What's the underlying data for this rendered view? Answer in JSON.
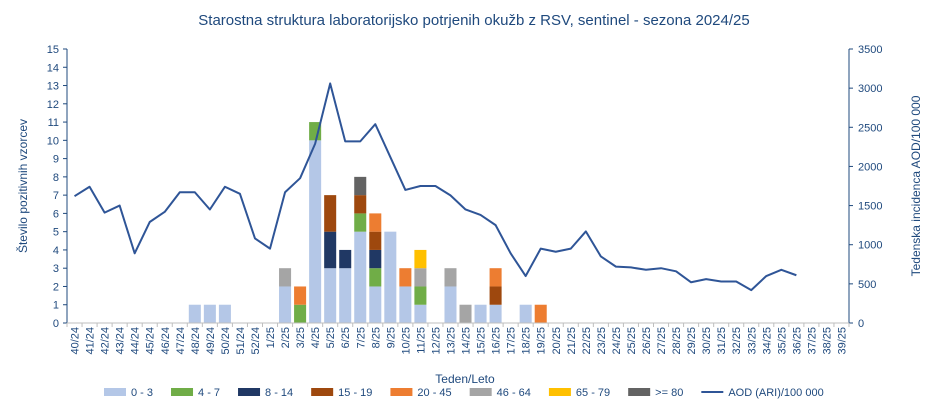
{
  "chart_data": {
    "type": "bar",
    "title": "Starostna struktura  laboratorijsko potrjenih okužb z RSV, sentinel - sezona 2024/25",
    "xlabel": "Teden/Leto",
    "ylabel": "Število pozitivnih vzorcev",
    "y2label": "Tedenska incidenca AOD/100 000",
    "ylim": [
      0,
      15
    ],
    "y2lim": [
      0,
      3500
    ],
    "yticks": [
      0,
      1,
      2,
      3,
      4,
      5,
      6,
      7,
      8,
      9,
      10,
      11,
      12,
      13,
      14,
      15
    ],
    "y2ticks": [
      0,
      500,
      1000,
      1500,
      2000,
      2500,
      3000,
      3500
    ],
    "grid": false,
    "legend_position": "bottom",
    "categories": [
      "40/24",
      "41/24",
      "42/24",
      "43/24",
      "44/24",
      "45/24",
      "46/24",
      "47/24",
      "48/24",
      "49/24",
      "50/24",
      "51/24",
      "52/24",
      "1/25",
      "2/25",
      "3/25",
      "4/25",
      "5/25",
      "6/25",
      "7/25",
      "8/25",
      "9/25",
      "10/25",
      "11/25",
      "12/25",
      "13/25",
      "14/25",
      "15/25",
      "16/25",
      "17/25",
      "18/25",
      "19/25",
      "20/25",
      "21/25",
      "22/25",
      "23/25",
      "24/25",
      "25/25",
      "26/25",
      "27/25",
      "28/25",
      "29/25",
      "30/25",
      "31/25",
      "32/25",
      "33/25",
      "34/25",
      "35/25",
      "36/25",
      "37/25",
      "38/25",
      "39/25"
    ],
    "series": [
      {
        "name": "0 - 3",
        "color": "#b4c7e7",
        "values": [
          0,
          0,
          0,
          0,
          0,
          0,
          0,
          0,
          1,
          1,
          1,
          0,
          0,
          0,
          2,
          0,
          10,
          3,
          3,
          5,
          2,
          5,
          2,
          1,
          0,
          2,
          0,
          1,
          1,
          0,
          1,
          0,
          0,
          0,
          0,
          0,
          0,
          0,
          0,
          0,
          0,
          0,
          0,
          0,
          0,
          0,
          0,
          0,
          0,
          0,
          0,
          0
        ]
      },
      {
        "name": "4 - 7",
        "color": "#70ad47",
        "values": [
          0,
          0,
          0,
          0,
          0,
          0,
          0,
          0,
          0,
          0,
          0,
          0,
          0,
          0,
          0,
          1,
          1,
          0,
          0,
          1,
          1,
          0,
          0,
          1,
          0,
          0,
          0,
          0,
          0,
          0,
          0,
          0,
          0,
          0,
          0,
          0,
          0,
          0,
          0,
          0,
          0,
          0,
          0,
          0,
          0,
          0,
          0,
          0,
          0,
          0,
          0,
          0
        ]
      },
      {
        "name": "8 - 14",
        "color": "#203864",
        "values": [
          0,
          0,
          0,
          0,
          0,
          0,
          0,
          0,
          0,
          0,
          0,
          0,
          0,
          0,
          0,
          0,
          0,
          2,
          1,
          0,
          1,
          0,
          0,
          0,
          0,
          0,
          0,
          0,
          0,
          0,
          0,
          0,
          0,
          0,
          0,
          0,
          0,
          0,
          0,
          0,
          0,
          0,
          0,
          0,
          0,
          0,
          0,
          0,
          0,
          0,
          0,
          0
        ]
      },
      {
        "name": "15 - 19",
        "color": "#9e480e",
        "values": [
          0,
          0,
          0,
          0,
          0,
          0,
          0,
          0,
          0,
          0,
          0,
          0,
          0,
          0,
          0,
          0,
          0,
          2,
          0,
          1,
          1,
          0,
          0,
          0,
          0,
          0,
          0,
          0,
          1,
          0,
          0,
          0,
          0,
          0,
          0,
          0,
          0,
          0,
          0,
          0,
          0,
          0,
          0,
          0,
          0,
          0,
          0,
          0,
          0,
          0,
          0,
          0
        ]
      },
      {
        "name": "20 - 45",
        "color": "#ed7d31",
        "values": [
          0,
          0,
          0,
          0,
          0,
          0,
          0,
          0,
          0,
          0,
          0,
          0,
          0,
          0,
          0,
          1,
          0,
          0,
          0,
          0,
          1,
          0,
          1,
          0,
          0,
          0,
          0,
          0,
          1,
          0,
          0,
          1,
          0,
          0,
          0,
          0,
          0,
          0,
          0,
          0,
          0,
          0,
          0,
          0,
          0,
          0,
          0,
          0,
          0,
          0,
          0,
          0
        ]
      },
      {
        "name": "46 - 64",
        "color": "#a5a5a5",
        "values": [
          0,
          0,
          0,
          0,
          0,
          0,
          0,
          0,
          0,
          0,
          0,
          0,
          0,
          0,
          1,
          0,
          0,
          0,
          0,
          0,
          0,
          0,
          0,
          1,
          0,
          1,
          1,
          0,
          0,
          0,
          0,
          0,
          0,
          0,
          0,
          0,
          0,
          0,
          0,
          0,
          0,
          0,
          0,
          0,
          0,
          0,
          0,
          0,
          0,
          0,
          0,
          0
        ]
      },
      {
        "name": "65 - 79",
        "color": "#ffc000",
        "values": [
          0,
          0,
          0,
          0,
          0,
          0,
          0,
          0,
          0,
          0,
          0,
          0,
          0,
          0,
          0,
          0,
          0,
          0,
          0,
          0,
          0,
          0,
          0,
          1,
          0,
          0,
          0,
          0,
          0,
          0,
          0,
          0,
          0,
          0,
          0,
          0,
          0,
          0,
          0,
          0,
          0,
          0,
          0,
          0,
          0,
          0,
          0,
          0,
          0,
          0,
          0,
          0
        ]
      },
      {
        "name": ">= 80",
        "color": "#636363",
        "values": [
          0,
          0,
          0,
          0,
          0,
          0,
          0,
          0,
          0,
          0,
          0,
          0,
          0,
          0,
          0,
          0,
          0,
          0,
          0,
          1,
          0,
          0,
          0,
          0,
          0,
          0,
          0,
          0,
          0,
          0,
          0,
          0,
          0,
          0,
          0,
          0,
          0,
          0,
          0,
          0,
          0,
          0,
          0,
          0,
          0,
          0,
          0,
          0,
          0,
          0,
          0,
          0
        ]
      }
    ],
    "line": {
      "name": "AOD (ARI)/100 000",
      "color": "#2f5597",
      "axis": "secondary",
      "values": [
        1620,
        1740,
        1410,
        1500,
        890,
        1290,
        1420,
        1670,
        1670,
        1450,
        1740,
        1650,
        1080,
        950,
        1670,
        1850,
        2290,
        3060,
        2320,
        2320,
        2540,
        2120,
        1700,
        1750,
        1750,
        1630,
        1450,
        1380,
        1250,
        890,
        600,
        950,
        910,
        950,
        1170,
        850,
        720,
        710,
        680,
        700,
        660,
        520,
        560,
        530,
        530,
        420,
        600,
        680,
        610,
        null,
        null,
        null
      ]
    }
  }
}
